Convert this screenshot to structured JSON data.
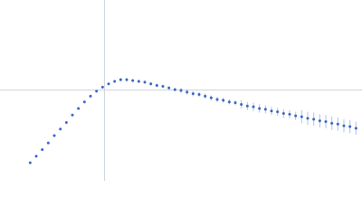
{
  "chart_data": {
    "type": "scatter",
    "xlim": [
      0,
      6
    ],
    "ylim": [
      0,
      2.2
    ],
    "reference_lines": {
      "x": 1.732,
      "y": 1.104
    },
    "color": "#3a66c4",
    "x": [
      0.5,
      0.6,
      0.7,
      0.8,
      0.9,
      1.0,
      1.1,
      1.2,
      1.3,
      1.4,
      1.5,
      1.6,
      1.7,
      1.8,
      1.9,
      2.0,
      2.1,
      2.2,
      2.3,
      2.4,
      2.5,
      2.6,
      2.7,
      2.8,
      2.9,
      3.0,
      3.1,
      3.2,
      3.3,
      3.4,
      3.5,
      3.6,
      3.7,
      3.8,
      3.9,
      4.0,
      4.1,
      4.2,
      4.3,
      4.4,
      4.5,
      4.6,
      4.7,
      4.8,
      4.9,
      5.0,
      5.1,
      5.2,
      5.3,
      5.4,
      5.5,
      5.6,
      5.7,
      5.8,
      5.9
    ],
    "values": [
      0.22,
      0.3,
      0.38,
      0.46,
      0.55,
      0.63,
      0.71,
      0.8,
      0.88,
      0.96,
      1.03,
      1.09,
      1.14,
      1.18,
      1.21,
      1.23,
      1.23,
      1.22,
      1.21,
      1.2,
      1.18,
      1.16,
      1.15,
      1.13,
      1.11,
      1.1,
      1.08,
      1.06,
      1.05,
      1.03,
      1.01,
      0.99,
      0.98,
      0.96,
      0.95,
      0.93,
      0.91,
      0.9,
      0.88,
      0.87,
      0.85,
      0.84,
      0.82,
      0.81,
      0.79,
      0.78,
      0.76,
      0.75,
      0.73,
      0.72,
      0.7,
      0.69,
      0.67,
      0.66,
      0.64
    ],
    "errors": [
      0.01,
      0.01,
      0.01,
      0.01,
      0.01,
      0.01,
      0.01,
      0.01,
      0.01,
      0.01,
      0.01,
      0.01,
      0.01,
      0.01,
      0.01,
      0.02,
      0.02,
      0.02,
      0.02,
      0.02,
      0.02,
      0.02,
      0.02,
      0.02,
      0.02,
      0.03,
      0.03,
      0.03,
      0.03,
      0.03,
      0.03,
      0.03,
      0.03,
      0.03,
      0.03,
      0.05,
      0.05,
      0.05,
      0.05,
      0.05,
      0.05,
      0.05,
      0.05,
      0.05,
      0.05,
      0.08,
      0.08,
      0.08,
      0.08,
      0.08,
      0.08,
      0.08,
      0.08,
      0.08,
      0.08
    ]
  }
}
